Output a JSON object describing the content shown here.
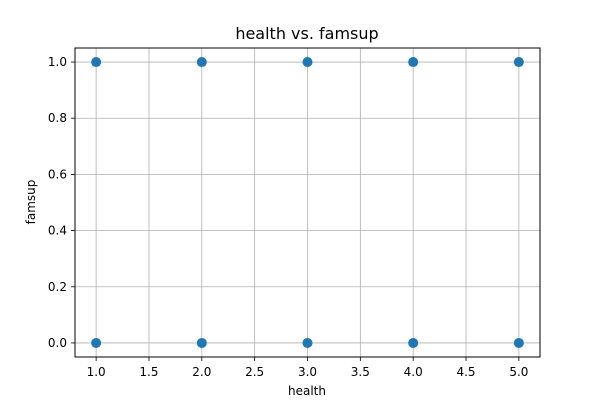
{
  "chart_data": {
    "type": "scatter",
    "title": "health vs. famsup",
    "xlabel": "health",
    "ylabel": "famsup",
    "xlim": [
      0.8,
      5.2
    ],
    "ylim": [
      -0.05,
      1.05
    ],
    "grid": true,
    "xticks": [
      "1.0",
      "1.5",
      "2.0",
      "2.5",
      "3.0",
      "3.5",
      "4.0",
      "4.5",
      "5.0"
    ],
    "yticks": [
      "0.0",
      "0.2",
      "0.4",
      "0.6",
      "0.8",
      "1.0"
    ],
    "points": [
      {
        "x": 1,
        "y": 1
      },
      {
        "x": 2,
        "y": 1
      },
      {
        "x": 3,
        "y": 1
      },
      {
        "x": 4,
        "y": 1
      },
      {
        "x": 5,
        "y": 1
      },
      {
        "x": 1,
        "y": 0
      },
      {
        "x": 2,
        "y": 0
      },
      {
        "x": 3,
        "y": 0
      },
      {
        "x": 4,
        "y": 0
      },
      {
        "x": 5,
        "y": 0
      }
    ],
    "color": "#1f77b4"
  }
}
